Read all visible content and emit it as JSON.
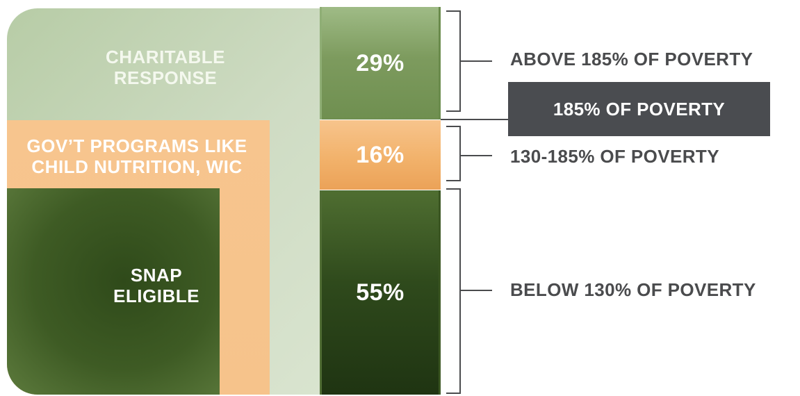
{
  "programs": {
    "charitable": "CHARITABLE\nRESPONSE",
    "gov": "GOV’T PROGRAMS LIKE\nCHILD NUTRITION, WIC",
    "snap": "SNAP\nELIGIBLE"
  },
  "segments": {
    "above_pct": "29%",
    "mid_pct": "16%",
    "below_pct": "55%"
  },
  "poverty_labels": {
    "above": "ABOVE 185% OF POVERTY",
    "threshold": "185% OF POVERTY",
    "mid": "130-185% OF POVERTY",
    "below": "BELOW 130% OF POVERTY"
  },
  "colors": {
    "light_green": "#b7cca6",
    "orange": "#f6c38b",
    "dark_green": "#2f4a1a",
    "label_gray": "#4a4b4d",
    "threshold_box": "#4a4c50"
  }
}
